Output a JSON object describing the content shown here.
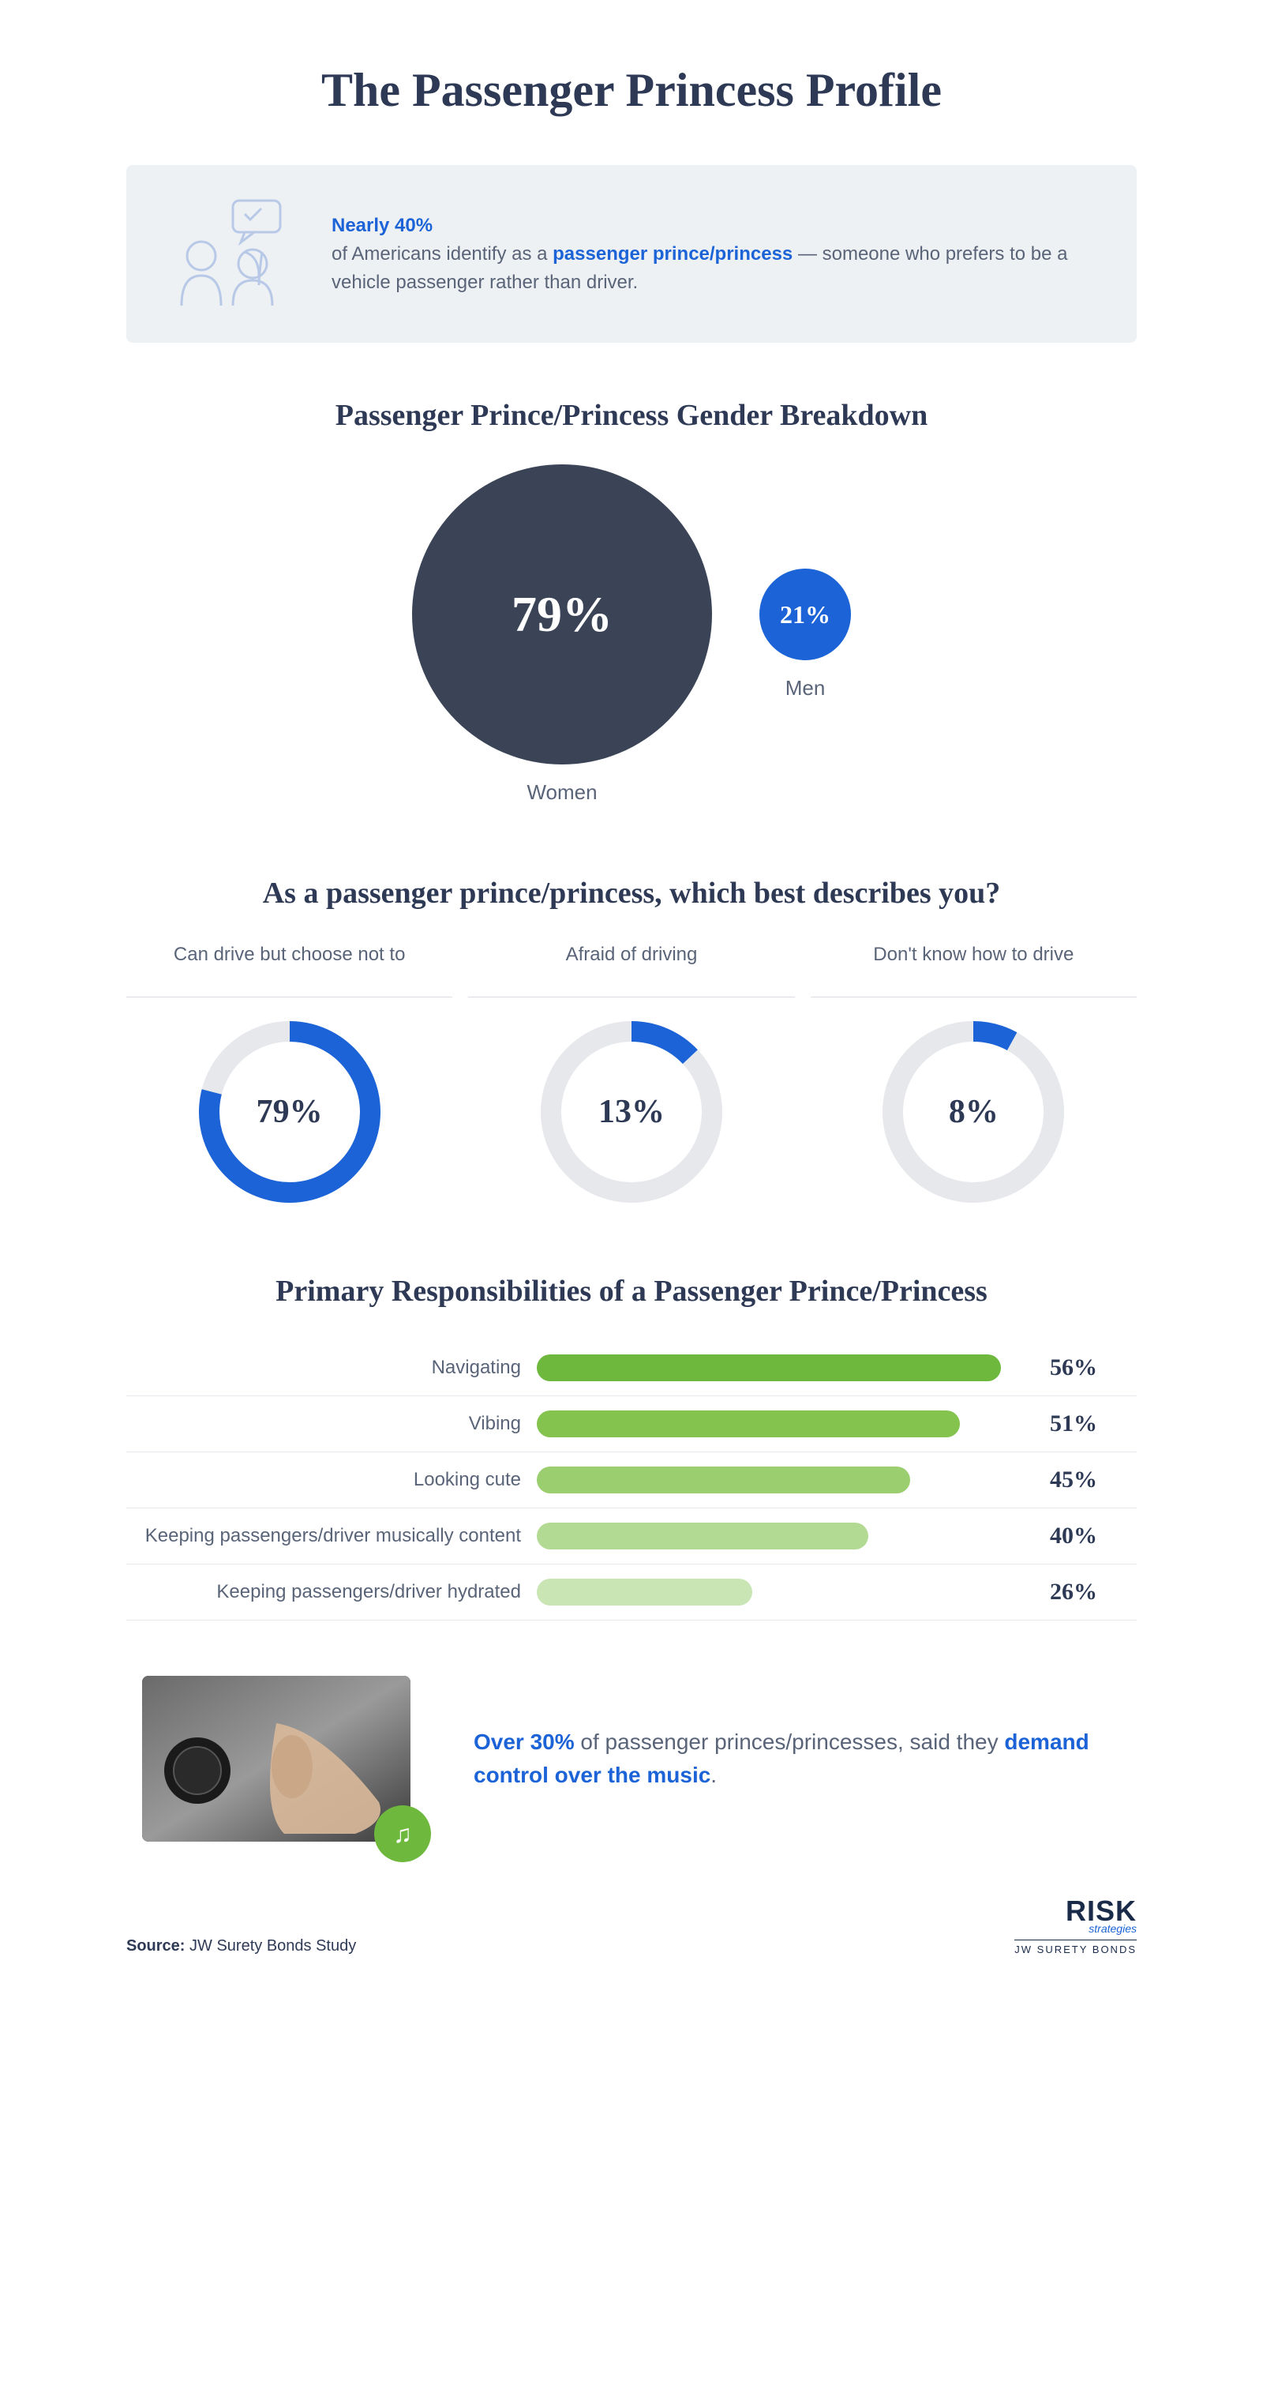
{
  "title": "The Passenger Princess Profile",
  "colors": {
    "dark_navy": "#2e3a55",
    "blue_accent": "#1b63d6",
    "text_gray": "#5a6478",
    "box_bg": "#eef1f4",
    "donut_track": "#e6e8eb"
  },
  "intro": {
    "highlight": "Nearly 40%",
    "line1": "of Americans identify as a ",
    "bold": "passenger prince/princess",
    "line2": " — someone who prefers to be a vehicle passenger rather than driver."
  },
  "gender_section": {
    "title": "Passenger Prince/Princess Gender Breakdown",
    "women": {
      "label": "Women",
      "value": 79,
      "display": "79%",
      "diameter": 380,
      "color": "#3a4456",
      "fontsize": 64
    },
    "men": {
      "label": "Men",
      "value": 21,
      "display": "21%",
      "diameter": 116,
      "color": "#1b63d6",
      "fontsize": 32
    }
  },
  "describe_section": {
    "title": "As a passenger prince/princess, which best describes you?",
    "donut_size": 230,
    "stroke_width": 26,
    "track_color": "#e6e8eb",
    "fill_color": "#1b63d6",
    "items": [
      {
        "label": "Can drive but choose not to",
        "value": 79,
        "display": "79%"
      },
      {
        "label": "Afraid of driving",
        "value": 13,
        "display": "13%"
      },
      {
        "label": "Don't know how to drive",
        "value": 8,
        "display": "8%"
      }
    ]
  },
  "responsibilities": {
    "title": "Primary Responsibilities of a Passenger Prince/Princess",
    "max_width_pct": 100,
    "scale_max": 60,
    "items": [
      {
        "label": "Navigating",
        "value": 56,
        "display": "56%",
        "color": "#6fb83e"
      },
      {
        "label": "Vibing",
        "value": 51,
        "display": "51%",
        "color": "#83c34e"
      },
      {
        "label": "Looking cute",
        "value": 45,
        "display": "45%",
        "color": "#9bce6f"
      },
      {
        "label": "Keeping passengers/driver musically content",
        "value": 40,
        "display": "40%",
        "color": "#b3da93"
      },
      {
        "label": "Keeping passengers/driver hydrated",
        "value": 26,
        "display": "26%",
        "color": "#c9e5b3"
      }
    ]
  },
  "music_callout": {
    "highlight1": "Over 30%",
    "mid": " of passenger princes/princesses, said they ",
    "highlight2": "demand control over the music",
    "end": ".",
    "badge_color": "#6fb83e"
  },
  "footer": {
    "source_label": "Source: ",
    "source_text": "JW Surety Bonds Study",
    "logo_main": "RISK",
    "logo_strat": "strategies",
    "logo_sub": "JW SURETY BONDS"
  }
}
